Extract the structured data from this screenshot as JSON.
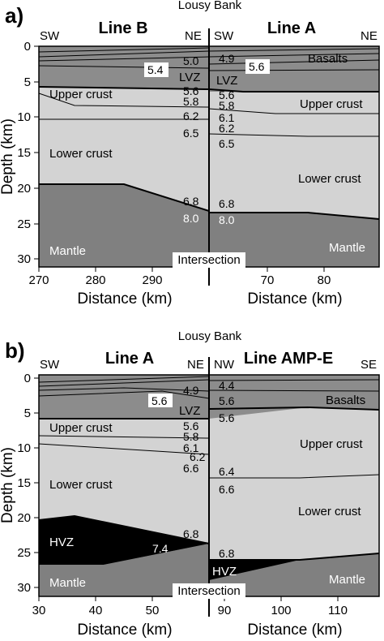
{
  "colors": {
    "basalt": "#8c8c8c",
    "upper_crust": "#d3d3d3",
    "lower_crust": "#d3d3d3",
    "mantle": "#808080",
    "hvz": "#000000"
  },
  "panel_a": {
    "letter": "a)",
    "site": "Lousy Bank",
    "left_line": "Line B",
    "right_line": "Line A",
    "left_dir_w": "SW",
    "left_dir_e": "NE",
    "right_dir_w": "SW",
    "right_dir_e": "NE",
    "y_label": "Depth (km)",
    "y_ticks": [
      "0",
      "5",
      "10",
      "15",
      "20",
      "25",
      "30"
    ],
    "left_x_ticks": [
      "270",
      "280",
      "290"
    ],
    "right_x_ticks": [
      "70",
      "80"
    ],
    "x_label": "Distance (km)",
    "regions": {
      "upper_left": "Upper crust",
      "lower_left": "Lower crust",
      "mantle_left": "Mantle",
      "basalts": "Basalts",
      "lvz_left": "LVZ",
      "lvz_right": "LVZ",
      "upper_right": "Upper crust",
      "lower_right": "Lower crust",
      "mantle_right": "Mantle"
    },
    "intersection": "Intersection",
    "velocities_left": [
      "5.4",
      "5.0",
      "5.6",
      "5.8",
      "6.2",
      "6.5",
      "6.8",
      "8.0"
    ],
    "velocities_right": [
      "4.9",
      "5.6",
      "5.6",
      "5.8",
      "6.1",
      "6.2",
      "6.5",
      "6.8",
      "8.0"
    ]
  },
  "panel_b": {
    "letter": "b)",
    "site": "Lousy Bank",
    "left_line": "Line A",
    "right_line": "Line AMP-E",
    "left_dir_w": "SW",
    "left_dir_e": "NE",
    "right_dir_w": "NW",
    "right_dir_e": "SE",
    "y_label": "Depth (km)",
    "y_ticks": [
      "0",
      "5",
      "10",
      "15",
      "20",
      "25",
      "30"
    ],
    "left_x_ticks": [
      "30",
      "40",
      "50"
    ],
    "right_x_ticks": [
      "90",
      "100",
      "110"
    ],
    "x_label": "Distance (km)",
    "regions": {
      "upper_left": "Upper crust",
      "lower_left": "Lower crust",
      "hvz_left": "HVZ",
      "mantle_left": "Mantle",
      "lvz": "LVZ",
      "basalts": "Basalts",
      "upper_right": "Upper crust",
      "lower_right": "Lower crust",
      "hvz_right": "HVZ",
      "mantle_right": "Mantle"
    },
    "intersection": "Intersection",
    "velocities_left": [
      "4.9",
      "5.6",
      "5.6",
      "5.8",
      "6.1",
      "6.2",
      "6.6",
      "6.8",
      "7.4"
    ],
    "velocities_right": [
      "4.4",
      "5.6",
      "5.6",
      "6.4",
      "6.6",
      "6.8"
    ]
  }
}
